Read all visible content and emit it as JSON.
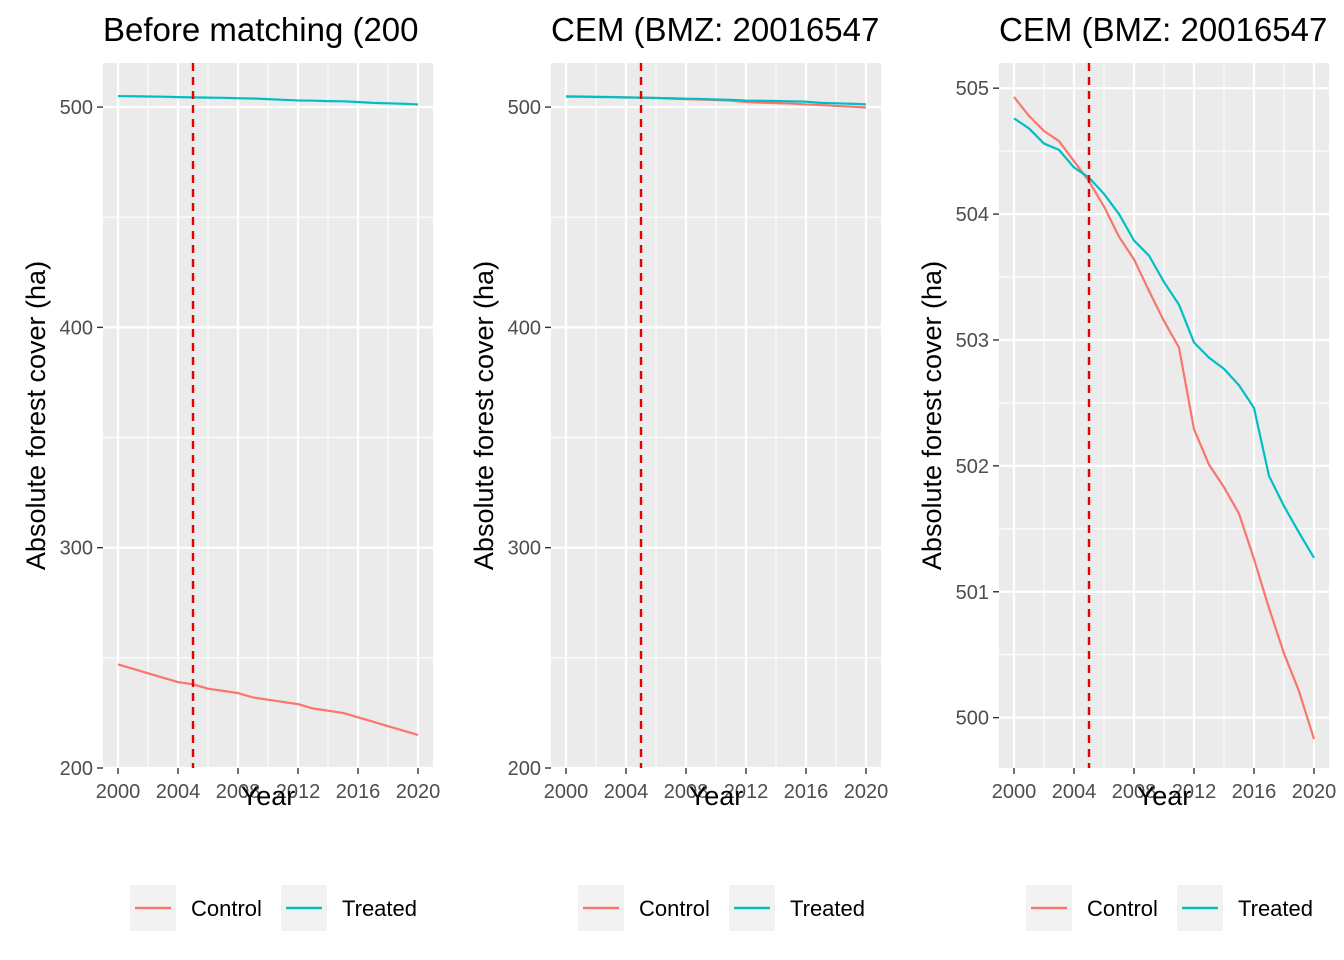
{
  "colors": {
    "panel_bg": "#ebebeb",
    "grid": "#ffffff",
    "control": "#f8766d",
    "treated": "#00bfc4",
    "vline": "#e60000",
    "legend_key_bg": "#f2f2f2"
  },
  "chart_data": [
    {
      "type": "line",
      "title": "Before matching (200",
      "xlabel": "Year",
      "ylabel": "Absolute forest cover (ha)",
      "xlim": [
        1999,
        2021
      ],
      "ylim": [
        200,
        520
      ],
      "xticks": [
        2000,
        2004,
        2008,
        2012,
        2016,
        2020
      ],
      "yticks": [
        200,
        300,
        400,
        500
      ],
      "vline": 2005,
      "legend_position": "bottom",
      "x": [
        2000,
        2001,
        2002,
        2003,
        2004,
        2005,
        2006,
        2007,
        2008,
        2009,
        2010,
        2011,
        2012,
        2013,
        2014,
        2015,
        2016,
        2017,
        2018,
        2019,
        2020
      ],
      "series": [
        {
          "name": "Control",
          "color": "control",
          "values": [
            247,
            245,
            243,
            241,
            239,
            238,
            236,
            235,
            234,
            232,
            231,
            230,
            229,
            227,
            226,
            225,
            223,
            221,
            219,
            217,
            215
          ]
        },
        {
          "name": "Treated",
          "color": "treated",
          "values": [
            505.0,
            504.9,
            504.8,
            504.7,
            504.5,
            504.4,
            504.3,
            504.2,
            504.0,
            503.9,
            503.6,
            503.3,
            503.0,
            502.9,
            502.7,
            502.6,
            502.3,
            501.9,
            501.7,
            501.5,
            501.2
          ]
        }
      ]
    },
    {
      "type": "line",
      "title": "CEM (BMZ: 20016547",
      "xlabel": "Year",
      "ylabel": "Absolute forest cover (ha)",
      "xlim": [
        1999,
        2021
      ],
      "ylim": [
        200,
        520
      ],
      "xticks": [
        2000,
        2004,
        2008,
        2012,
        2016,
        2020
      ],
      "yticks": [
        200,
        300,
        400,
        500
      ],
      "vline": 2005,
      "legend_position": "bottom",
      "x": [
        2000,
        2001,
        2002,
        2003,
        2004,
        2005,
        2006,
        2007,
        2008,
        2009,
        2010,
        2011,
        2012,
        2013,
        2014,
        2015,
        2016,
        2017,
        2018,
        2019,
        2020
      ],
      "series": [
        {
          "name": "Control",
          "color": "control",
          "values": [
            504.9,
            504.8,
            504.7,
            504.6,
            504.4,
            504.3,
            504.1,
            503.8,
            503.6,
            503.4,
            503.2,
            502.9,
            502.3,
            502.0,
            501.8,
            501.6,
            501.2,
            500.9,
            500.5,
            500.2,
            499.8
          ]
        },
        {
          "name": "Treated",
          "color": "treated",
          "values": [
            504.75,
            504.7,
            504.55,
            504.5,
            504.35,
            504.3,
            504.15,
            504.0,
            503.8,
            503.65,
            503.45,
            503.3,
            502.95,
            502.85,
            502.75,
            502.6,
            502.45,
            501.9,
            501.7,
            501.5,
            501.25
          ]
        }
      ]
    },
    {
      "type": "line",
      "title": "CEM (BMZ: 20016547",
      "xlabel": "Year",
      "ylabel": "Absolute forest cover (ha)",
      "xlim": [
        1999,
        2021
      ],
      "ylim": [
        499.6,
        505.2
      ],
      "xticks": [
        2000,
        2004,
        2008,
        2012,
        2016,
        2020
      ],
      "yticks": [
        500,
        501,
        502,
        503,
        504,
        505
      ],
      "vline": 2005,
      "legend_position": "bottom",
      "x": [
        2000,
        2001,
        2002,
        2003,
        2004,
        2005,
        2006,
        2007,
        2008,
        2009,
        2010,
        2011,
        2012,
        2013,
        2014,
        2015,
        2016,
        2017,
        2018,
        2019,
        2020
      ],
      "series": [
        {
          "name": "Control",
          "color": "control",
          "values": [
            504.93,
            504.78,
            504.66,
            504.58,
            504.42,
            504.26,
            504.06,
            503.82,
            503.64,
            503.39,
            503.15,
            502.94,
            502.29,
            502.01,
            501.83,
            501.62,
            501.26,
            500.87,
            500.51,
            500.21,
            499.83
          ]
        },
        {
          "name": "Treated",
          "color": "treated",
          "values": [
            504.76,
            504.68,
            504.56,
            504.51,
            504.37,
            504.29,
            504.16,
            504.0,
            503.79,
            503.67,
            503.46,
            503.28,
            502.98,
            502.86,
            502.77,
            502.64,
            502.46,
            501.92,
            501.68,
            501.47,
            501.27
          ]
        }
      ]
    }
  ]
}
